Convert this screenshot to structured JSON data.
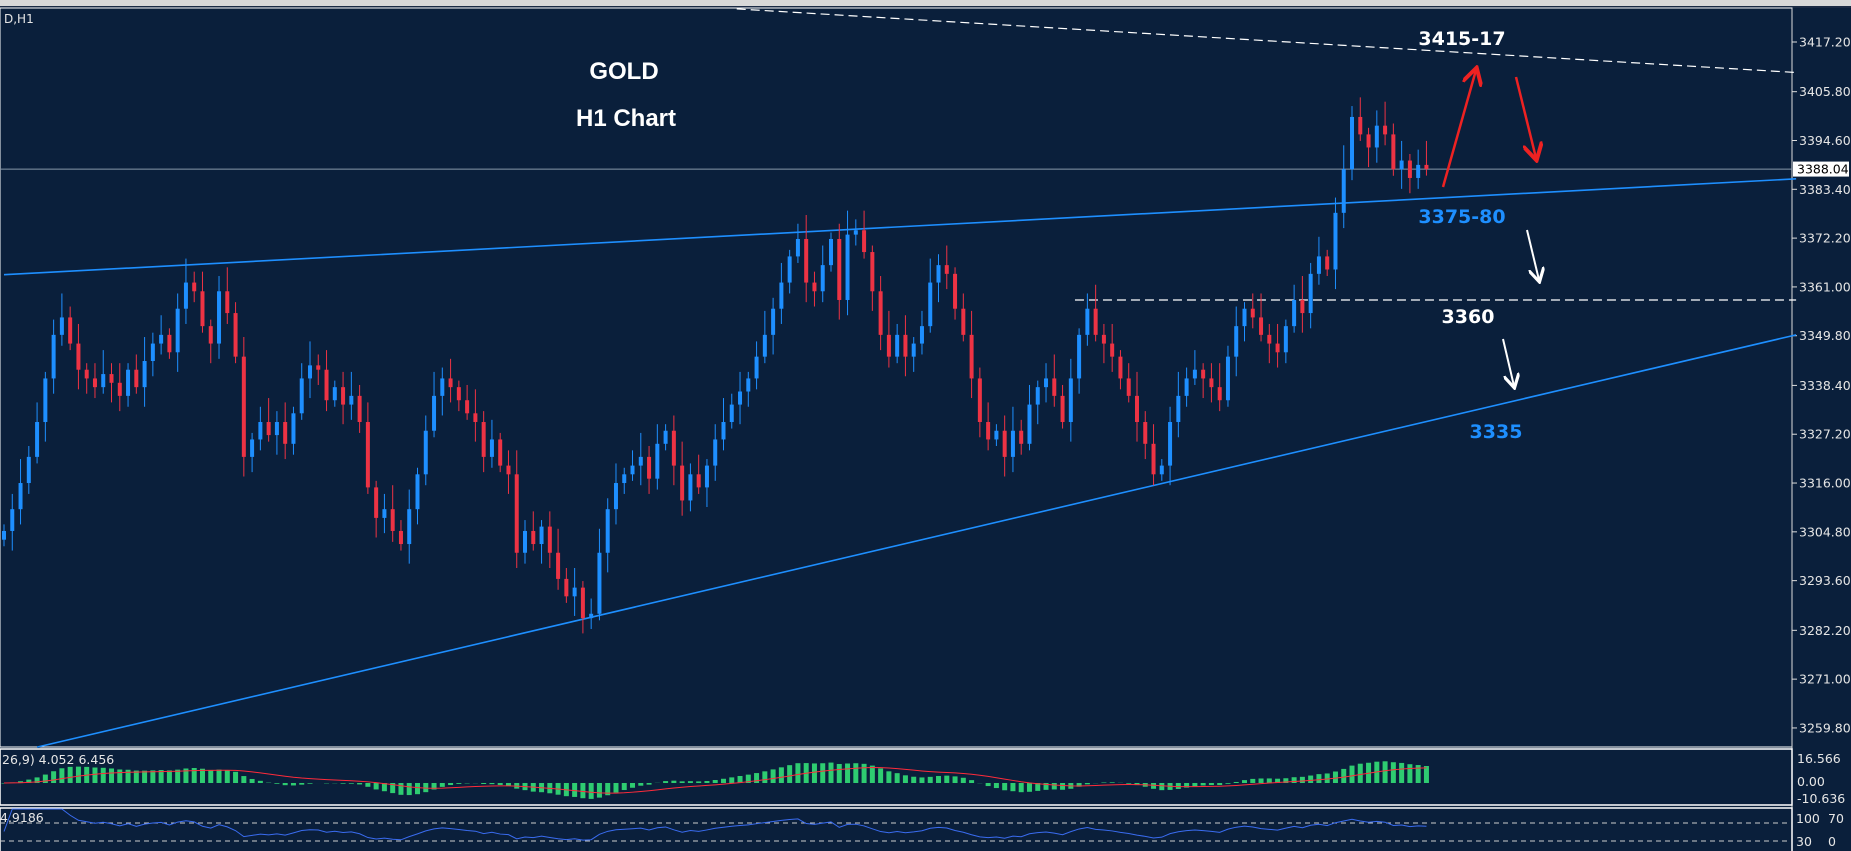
{
  "window": {
    "symbol_label": "D,H1"
  },
  "header": {
    "title": "GOLD",
    "subtitle": "H1 Chart"
  },
  "colors": {
    "background": "#0a1f3b",
    "bull": "#1e8fff",
    "bear": "#ee3344",
    "trendline": "#1e8fff",
    "annotation_red": "#ee2222",
    "annotation_white": "#ffffff",
    "macd_hist": "#2ecc71",
    "macd_signal": "#ff2b3b",
    "rsi": "#3a6cf0"
  },
  "chart_data": {
    "type": "candlestick",
    "title": "GOLD H1 Chart",
    "ylim": [
      3255,
      3425
    ],
    "y_ticks": [
      "3417.20",
      "3405.80",
      "3394.60",
      "3383.40",
      "3372.20",
      "3361.00",
      "3349.80",
      "3338.40",
      "3327.20",
      "3316.00",
      "3304.80",
      "3293.60",
      "3282.20",
      "3271.00",
      "3259.80"
    ],
    "current_price": "3388.04",
    "close": [
      3305,
      3310,
      3316,
      3322,
      3330,
      3340,
      3350,
      3354,
      3348,
      3342,
      3340,
      3338,
      3341,
      3339,
      3336,
      3342,
      3338,
      3344,
      3348,
      3350,
      3346,
      3356,
      3362,
      3360,
      3352,
      3348,
      3360,
      3355,
      3345,
      3322,
      3326,
      3330,
      3327,
      3330,
      3325,
      3332,
      3340,
      3343,
      3342,
      3335,
      3338,
      3334,
      3336,
      3330,
      3315,
      3308,
      3310,
      3305,
      3302,
      3310,
      3318,
      3328,
      3336,
      3340,
      3338,
      3335,
      3332,
      3330,
      3322,
      3326,
      3320,
      3318,
      3300,
      3305,
      3302,
      3306,
      3300,
      3294,
      3290,
      3292,
      3285,
      3286,
      3300,
      3310,
      3316,
      3318,
      3320,
      3322,
      3317,
      3325,
      3328,
      3320,
      3312,
      3318,
      3315,
      3320,
      3326,
      3330,
      3334,
      3337,
      3340,
      3345,
      3350,
      3356,
      3362,
      3368,
      3372,
      3362,
      3360,
      3366,
      3372,
      3358,
      3373,
      3374,
      3369,
      3360,
      3350,
      3345,
      3350,
      3345,
      3348,
      3352,
      3362,
      3366,
      3364,
      3356,
      3350,
      3340,
      3330,
      3326,
      3328,
      3322,
      3328,
      3325,
      3334,
      3338,
      3340,
      3336,
      3330,
      3340,
      3350,
      3356,
      3350,
      3348,
      3345,
      3340,
      3336,
      3330,
      3325,
      3318,
      3320,
      3330,
      3336,
      3340,
      3342,
      3340,
      3338,
      3335,
      3345,
      3352,
      3356,
      3354,
      3350,
      3348,
      3346,
      3352,
      3358,
      3355,
      3364,
      3368,
      3365,
      3378,
      3388,
      3400,
      3396,
      3393,
      3398,
      3396,
      3388,
      3390,
      3386,
      3389,
      3388.04
    ],
    "trendlines": [
      {
        "style": "solid",
        "color": "#1e8fff",
        "from": [
          0,
          3363.8
        ],
        "to": [
          216.7,
          3385.8
        ]
      },
      {
        "style": "solid",
        "color": "#1e8fff",
        "from": [
          4,
          3255.4
        ],
        "to": [
          216.7,
          3350.0
        ]
      },
      {
        "style": "dashed",
        "color": "#ffffff",
        "from": [
          88.6,
          3424.8
        ],
        "to": [
          216.7,
          3410.2
        ]
      },
      {
        "style": "dashed",
        "color": "#ffffff",
        "from": [
          129.5,
          3358.0
        ],
        "to": [
          216.7,
          3358.0
        ]
      }
    ],
    "annotations": [
      {
        "text": "3415-17",
        "color": "#ffffff"
      },
      {
        "text": "3375-80",
        "color": "#1e8fff"
      },
      {
        "text": "3360",
        "color": "#ffffff"
      },
      {
        "text": "3335",
        "color": "#1e8fff"
      }
    ]
  },
  "macd": {
    "label": "26,9) 4.052 6.456",
    "ticks": [
      "16.566",
      "0.00",
      "-10.636"
    ]
  },
  "rsi": {
    "label": "4.9186",
    "ticks": [
      "100",
      "70",
      "30",
      "0"
    ]
  }
}
